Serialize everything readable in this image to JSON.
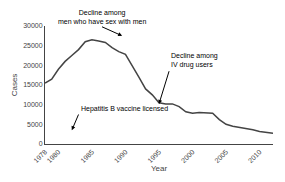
{
  "chart_data": {
    "type": "line",
    "xlabel": "Year",
    "ylabel": "Cases",
    "x": [
      1978,
      1979,
      1980,
      1981,
      1982,
      1983,
      1984,
      1985,
      1986,
      1987,
      1988,
      1989,
      1990,
      1991,
      1992,
      1993,
      1994,
      1995,
      1996,
      1997,
      1998,
      1999,
      2000,
      2001,
      2002,
      2003,
      2004,
      2005,
      2006,
      2007,
      2008,
      2009,
      2010,
      2011,
      2012
    ],
    "values": [
      15500,
      16500,
      19000,
      21000,
      22500,
      24000,
      26000,
      26500,
      26200,
      25800,
      24500,
      23500,
      22800,
      20000,
      17000,
      14000,
      12500,
      10500,
      10200,
      10200,
      9500,
      8200,
      7800,
      8000,
      7900,
      7800,
      6200,
      5000,
      4500,
      4200,
      4000,
      3600,
      3200,
      2900,
      2700
    ],
    "color": "#444444",
    "xlim": [
      1978,
      2012
    ],
    "ylim": [
      0,
      30000
    ],
    "xticks": [
      1978,
      1980,
      1985,
      1990,
      1995,
      2000,
      2005,
      2010
    ],
    "yticks": [
      0,
      5000,
      10000,
      15000,
      20000,
      25000,
      30000
    ],
    "grid": false,
    "annotations": [
      {
        "text": "Decline among\nmen who have sex with men",
        "x": 1989.5,
        "y": 27500,
        "text_x": 1986.5,
        "text_y": 29800,
        "align": "center"
      },
      {
        "text": "Decline among\nIV drug users",
        "x": 1995,
        "y": 10200,
        "text_x": 1996.5,
        "text_y": 18500,
        "align": "left"
      },
      {
        "text": "Hepatitis B vaccine licensed",
        "x": 1982,
        "y": 3500,
        "text_x": 1983,
        "text_y": 7500,
        "align": "left"
      }
    ]
  }
}
